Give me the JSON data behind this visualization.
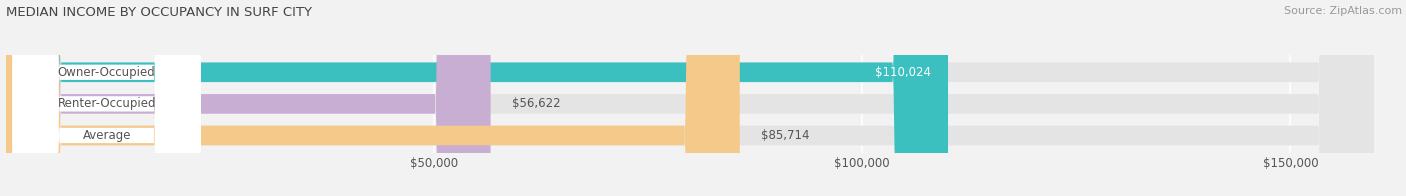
{
  "title": "MEDIAN INCOME BY OCCUPANCY IN SURF CITY",
  "source": "Source: ZipAtlas.com",
  "categories": [
    "Owner-Occupied",
    "Renter-Occupied",
    "Average"
  ],
  "values": [
    110024,
    56622,
    85714
  ],
  "bar_colors": [
    "#3bbfbf",
    "#c9aed4",
    "#f5c98a"
  ],
  "bar_bg_color": "#e4e4e4",
  "value_labels": [
    "$110,024",
    "$56,622",
    "$85,714"
  ],
  "value_inside": [
    true,
    false,
    false
  ],
  "xlim_max": 163000,
  "xtick_vals": [
    50000,
    100000,
    150000
  ],
  "xtick_labels": [
    "$50,000",
    "$100,000",
    "$150,000"
  ],
  "bar_height": 0.62,
  "label_color": "#555555",
  "title_color": "#444444",
  "source_color": "#999999",
  "value_inside_color": "#ffffff",
  "value_outside_color": "#555555",
  "background_color": "#f2f2f2",
  "grid_color": "#ffffff"
}
